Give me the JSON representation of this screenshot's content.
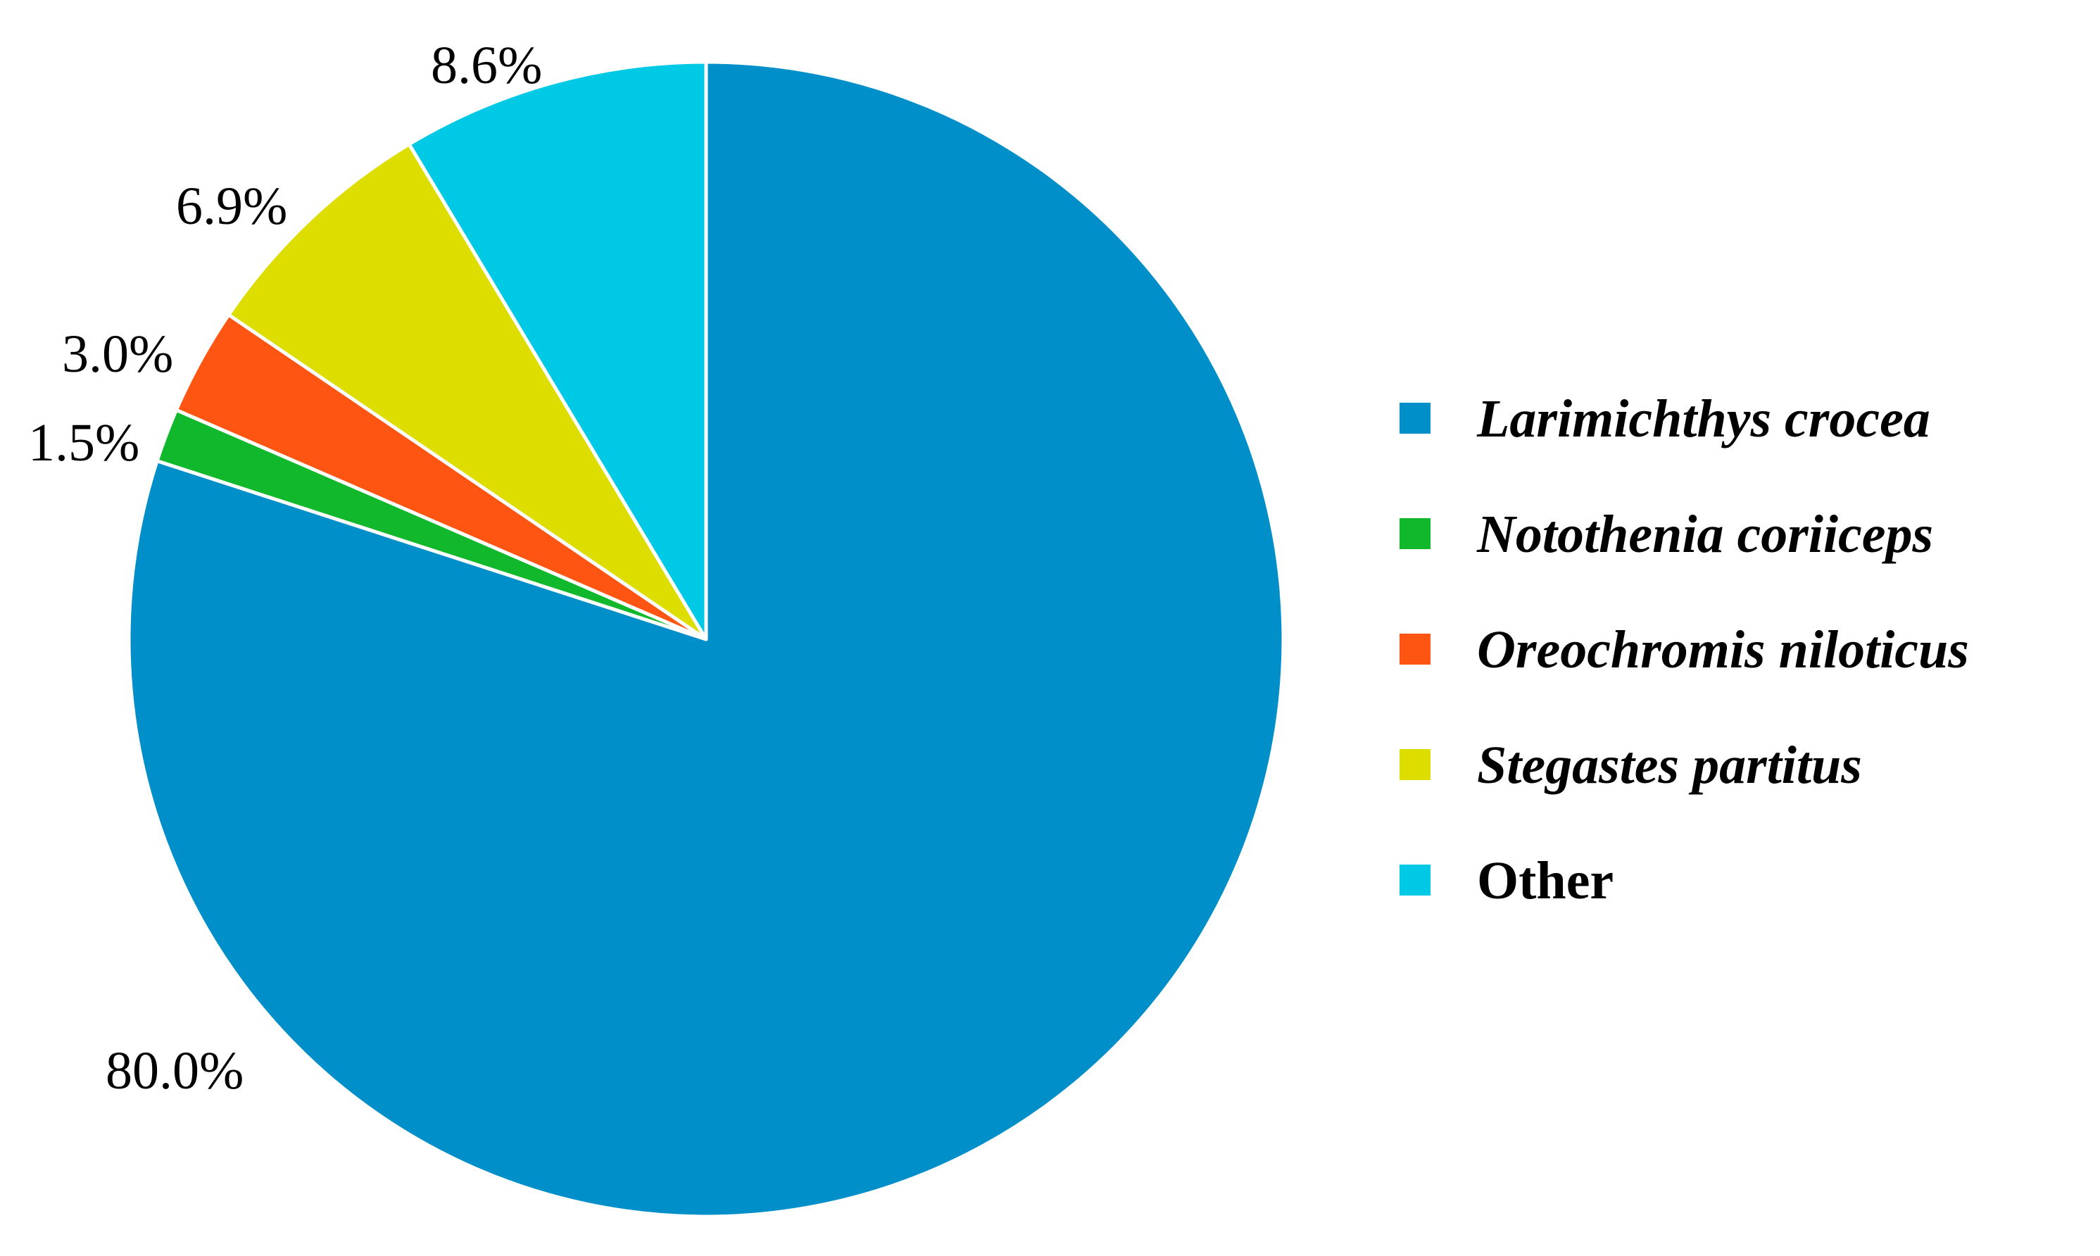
{
  "chart_data": {
    "type": "pie",
    "start_angle": "12 o'clock",
    "direction": "clockwise",
    "legend_position": "right",
    "slices": [
      {
        "name": "Larimichthys crocea",
        "value": 80.0,
        "label": "80.0%",
        "color": "#008FC9",
        "italic": true
      },
      {
        "name": "Notothenia coriiceps",
        "value": 1.5,
        "label": "1.5%",
        "color": "#11B82C",
        "italic": true
      },
      {
        "name": "Oreochromis niloticus",
        "value": 3.0,
        "label": "3.0%",
        "color": "#FF5512",
        "italic": true
      },
      {
        "name": "Stegastes partitus",
        "value": 6.9,
        "label": "6.9%",
        "color": "#DDDD00",
        "italic": true
      },
      {
        "name": "Other",
        "value": 8.6,
        "label": "8.6%",
        "color": "#00C9E6",
        "italic": false
      }
    ]
  }
}
